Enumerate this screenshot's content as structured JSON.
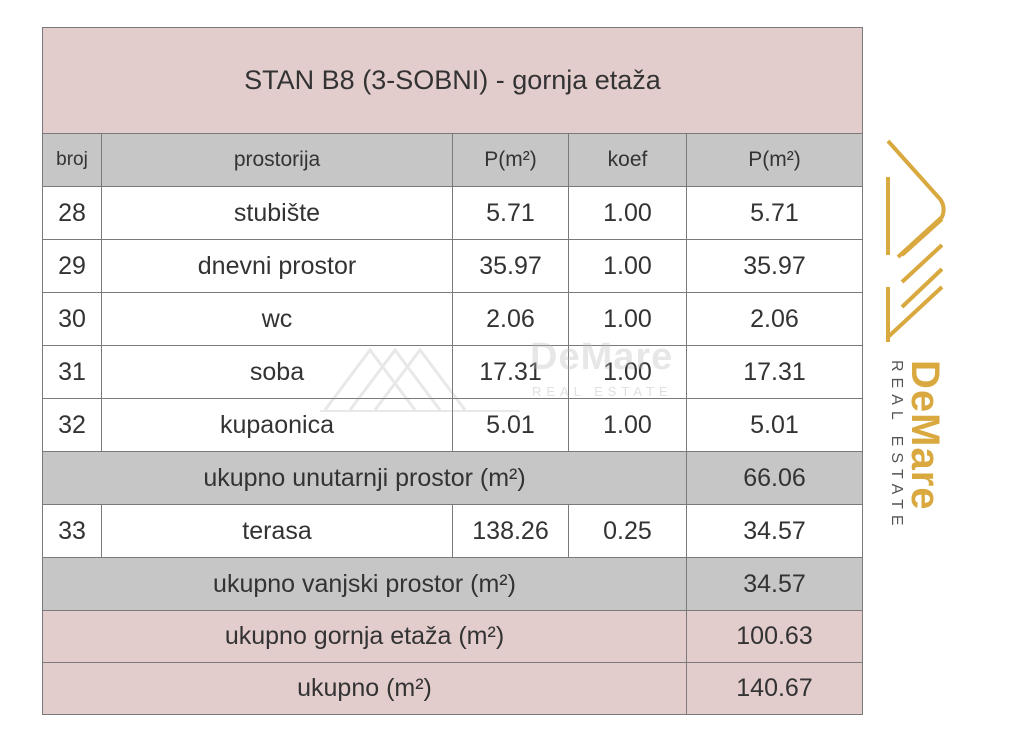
{
  "title": "STAN B8 (3-SOBNI) - gornja etaža",
  "headers": {
    "broj": "broj",
    "prostorija": "prostorija",
    "p": "P(m²)",
    "koef": "koef",
    "p_total": "P(m²)"
  },
  "rooms": [
    {
      "broj": "28",
      "name": "stubište",
      "area": "5.71",
      "koef": "1.00",
      "total": "5.71"
    },
    {
      "broj": "29",
      "name": "dnevni prostor",
      "area": "35.97",
      "koef": "1.00",
      "total": "35.97"
    },
    {
      "broj": "30",
      "name": "wc",
      "area": "2.06",
      "koef": "1.00",
      "total": "2.06"
    },
    {
      "broj": "31",
      "name": "soba",
      "area": "17.31",
      "koef": "1.00",
      "total": "17.31"
    },
    {
      "broj": "32",
      "name": "kupaonica",
      "area": "5.01",
      "koef": "1.00",
      "total": "5.01"
    }
  ],
  "interior_total": {
    "label": "ukupno unutarnji prostor (m²)",
    "value": "66.06"
  },
  "outdoor": {
    "broj": "33",
    "name": "terasa",
    "area": "138.26",
    "koef": "0.25",
    "total": "34.57"
  },
  "outdoor_total": {
    "label": "ukupno vanjski prostor (m²)",
    "value": "34.57"
  },
  "floor_total": {
    "label": "ukupno gornja etaža (m²)",
    "value": "100.63"
  },
  "grand_total": {
    "label": "ukupno (m²)",
    "value": "140.67"
  },
  "watermark": {
    "brand": "DeMare",
    "sub": "REAL ESTATE"
  },
  "logo": {
    "brand": "DeMare",
    "sub": "REAL ESTATE",
    "gold": "#d9a940"
  }
}
